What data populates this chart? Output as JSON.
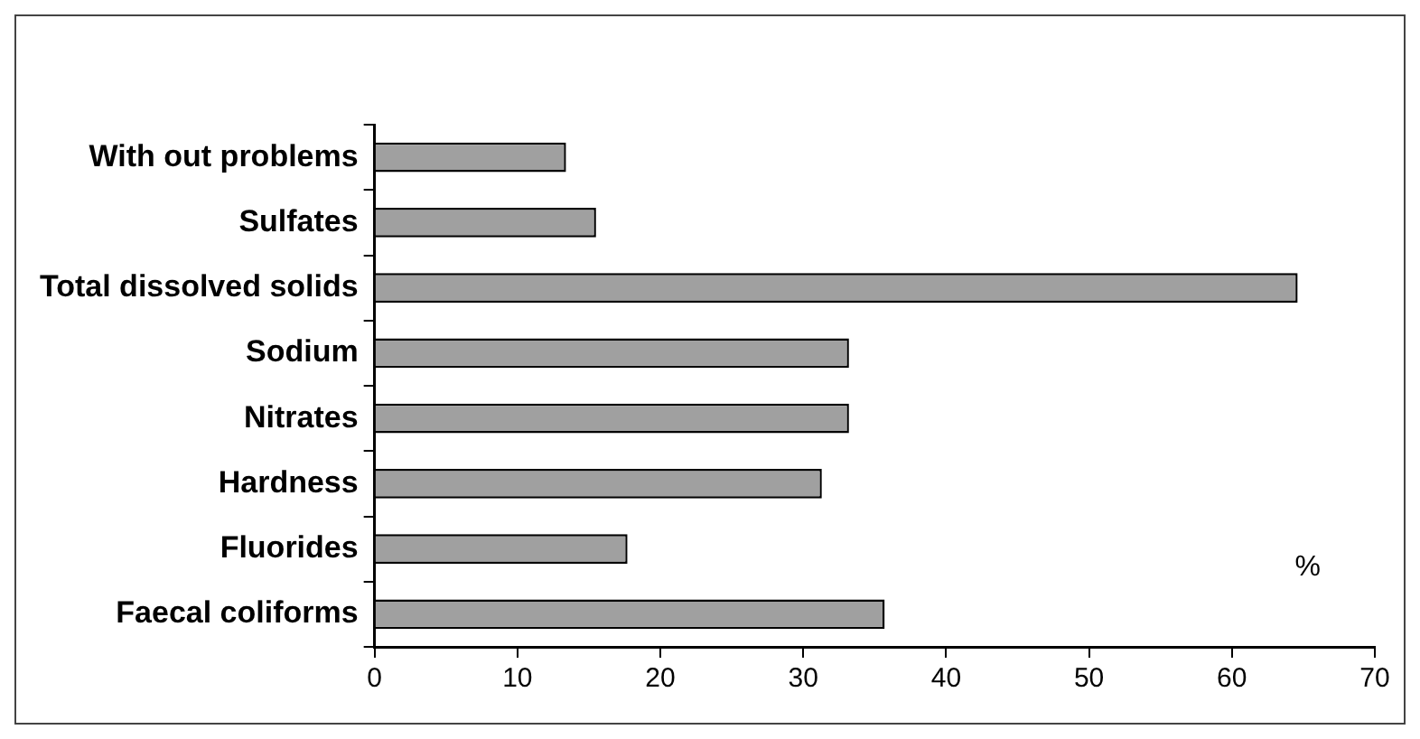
{
  "chart_data": {
    "type": "bar",
    "orientation": "horizontal",
    "categories": [
      "With out problems",
      "Sulfates",
      "Total dissolved solids",
      "Sodium",
      "Nitrates",
      "Hardness",
      "Fluorides",
      "Faecal coliforms"
    ],
    "values": [
      13.4,
      15.5,
      64.6,
      33.2,
      33.2,
      31.3,
      17.7,
      35.7
    ],
    "color": "#a0a0a0",
    "xlim": [
      0,
      70
    ],
    "xticks": [
      0,
      10,
      20,
      30,
      40,
      50,
      60,
      70
    ],
    "annotations": [
      "%"
    ],
    "grid": false,
    "legend": false
  }
}
